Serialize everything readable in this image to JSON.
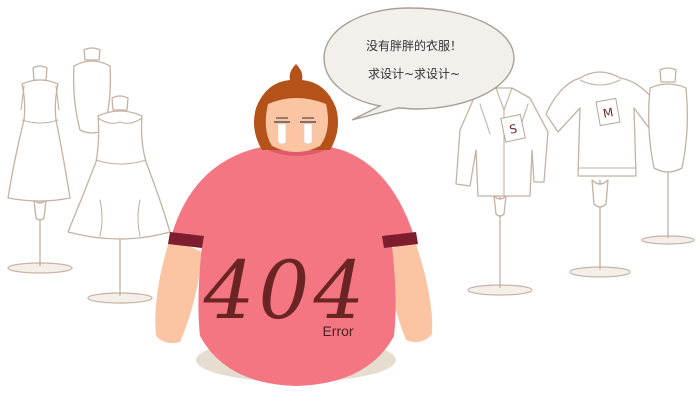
{
  "speech_bubble": {
    "line1": "没有胖胖的衣服！",
    "line2": "求设计~求设计~"
  },
  "error": {
    "code": "404",
    "label": "Error"
  },
  "size_tags": {
    "shirt_tag": "S",
    "sweater_tag": "M"
  },
  "colors": {
    "shirt": "#f47683",
    "skin": "#fbc5a4",
    "hair": "#b5521a",
    "text_dark": "#6b2424",
    "outline": "#c4b2a2"
  }
}
